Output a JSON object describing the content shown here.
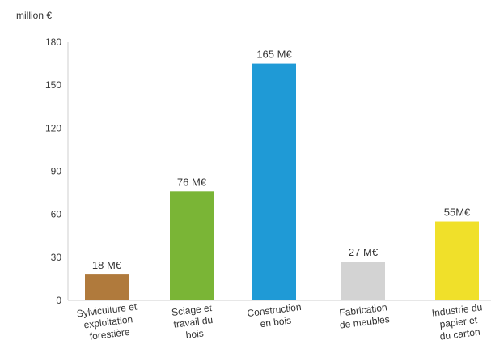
{
  "chart_data": {
    "type": "bar",
    "ylabel": "million €",
    "xlabel": "",
    "title": "",
    "ylim": [
      0,
      180
    ],
    "yticks": [
      0,
      30,
      60,
      90,
      120,
      150,
      180
    ],
    "grid": false,
    "categories": [
      "Sylviculture et exploitation forestière",
      "Sciage et travail du bois",
      "Construction en bois",
      "Fabrication de meubles",
      "Industrie du papier et du carton"
    ],
    "category_label_lines": [
      [
        "Sylviculture et",
        "exploitation",
        "forestière"
      ],
      [
        "Sciage et",
        "travail du",
        "bois"
      ],
      [
        "Construction",
        "en bois"
      ],
      [
        "Fabrication",
        "de meubles"
      ],
      [
        "Industrie du",
        "papier et",
        "du carton"
      ]
    ],
    "values": [
      18,
      76,
      165,
      27,
      55
    ],
    "value_labels": [
      "18 M€",
      "76 M€",
      "165 M€",
      "27 M€",
      "55M€"
    ],
    "colors": [
      "#b07a3c",
      "#7ab536",
      "#1f9ad6",
      "#d3d3d3",
      "#f0e02a"
    ]
  }
}
